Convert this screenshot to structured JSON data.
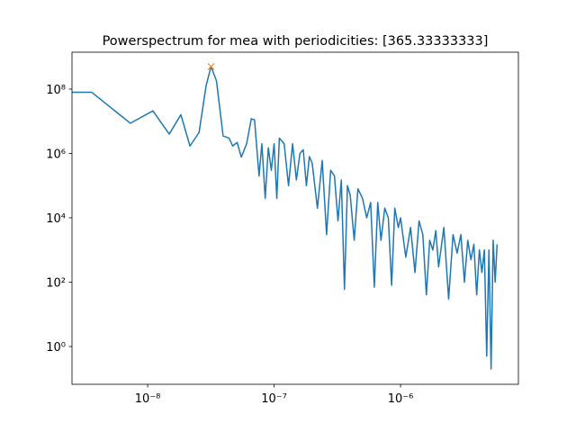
{
  "chart_data": {
    "type": "line",
    "title": "Powerspectrum for mea with periodicities: [365.33333333]",
    "log_x": true,
    "log_y": true,
    "xlim": [
      2.52e-09,
      8.55e-06
    ],
    "ylim": [
      0.067,
      1400000000.0
    ],
    "xticks": [
      {
        "value": 1e-08,
        "label": "10⁻⁸"
      },
      {
        "value": 1e-07,
        "label": "10⁻⁷"
      },
      {
        "value": 1e-06,
        "label": "10⁻⁶"
      }
    ],
    "yticks": [
      {
        "value": 1,
        "label": "10⁰"
      },
      {
        "value": 100,
        "label": "10²"
      },
      {
        "value": 10000,
        "label": "10⁴"
      },
      {
        "value": 1000000,
        "label": "10⁶"
      },
      {
        "value": 100000000,
        "label": "10⁸"
      }
    ],
    "series": [
      {
        "color": "#1f77b4",
        "x": [
          2.5e-09,
          3.6e-09,
          7.3e-09,
          1.1e-08,
          1.48e-08,
          1.83e-08,
          2.16e-08,
          2.55e-08,
          2.9e-08,
          3.17e-08,
          3.5e-08,
          3.95e-08,
          4.4e-08,
          4.7e-08,
          5.1e-08,
          5.5e-08,
          6.06e-08,
          6.6e-08,
          7e-08,
          7.6e-08,
          8e-08,
          8.5e-08,
          9e-08,
          9.5e-08,
          1e-07,
          1.05e-07,
          1.1e-07,
          1.2e-07,
          1.3e-07,
          1.4e-07,
          1.5e-07,
          1.6e-07,
          1.7e-07,
          1.8e-07,
          1.9e-07,
          2e-07,
          2.2e-07,
          2.4e-07,
          2.6e-07,
          2.8e-07,
          3e-07,
          3.2e-07,
          3.4e-07,
          3.6e-07,
          3.8e-07,
          4e-07,
          4.3e-07,
          4.6e-07,
          5e-07,
          5.4e-07,
          5.8e-07,
          6.2e-07,
          6.6e-07,
          7e-07,
          7.5e-07,
          8e-07,
          8.5e-07,
          9e-07,
          9.6e-07,
          1e-06,
          1.1e-06,
          1.2e-06,
          1.3e-06,
          1.4e-06,
          1.5e-06,
          1.6e-06,
          1.7e-06,
          1.8e-06,
          1.9e-06,
          2e-06,
          2.2e-06,
          2.4e-06,
          2.6e-06,
          2.8e-06,
          3e-06,
          3.2e-06,
          3.4e-06,
          3.6e-06,
          3.8e-06,
          4e-06,
          4.2e-06,
          4.4e-06,
          4.6e-06,
          4.8e-06,
          5e-06,
          5.2e-06,
          5.4e-06,
          5.6e-06,
          5.8e-06
        ],
        "values": [
          80000000.0,
          80000000.0,
          8700000.0,
          21000000.0,
          4000000.0,
          16000000.0,
          1700000.0,
          4500000.0,
          130000000.0,
          500000000.0,
          180000000.0,
          3500000.0,
          3000000.0,
          1700000.0,
          2200000.0,
          770000.0,
          2000000.0,
          12000000.0,
          11000000.0,
          200000.0,
          2000000.0,
          40000.0,
          1500000.0,
          300000.0,
          2000000.0,
          40000.0,
          3000000.0,
          2000000.0,
          100000.0,
          2000000.0,
          150000.0,
          1000000.0,
          1300000.0,
          100000.0,
          800000.0,
          500000.0,
          20000.0,
          600000.0,
          3000.0,
          300000.0,
          200000.0,
          8000.0,
          150000.0,
          60.0,
          100000.0,
          50000.0,
          2000.0,
          80000.0,
          40000.0,
          10000.0,
          30000.0,
          70.0,
          30000.0,
          2000.0,
          20000.0,
          10000.0,
          80.0,
          20000.0,
          5000.0,
          10000.0,
          600.0,
          5000.0,
          200.0,
          8000.0,
          3000.0,
          40.0,
          2000.0,
          1000.0,
          4000.0,
          300.0,
          5000.0,
          30.0,
          3000.0,
          800.0,
          3000.0,
          100.0,
          2000.0,
          500.0,
          1500.0,
          40.0,
          1000.0,
          200.0,
          1000.0,
          0.5,
          1000.0,
          0.2,
          2000.0,
          100.0,
          1500.0
        ]
      }
    ],
    "peak": {
      "x": 3.17e-08,
      "value": 500000000.0,
      "color": "#ff7f0e"
    }
  }
}
